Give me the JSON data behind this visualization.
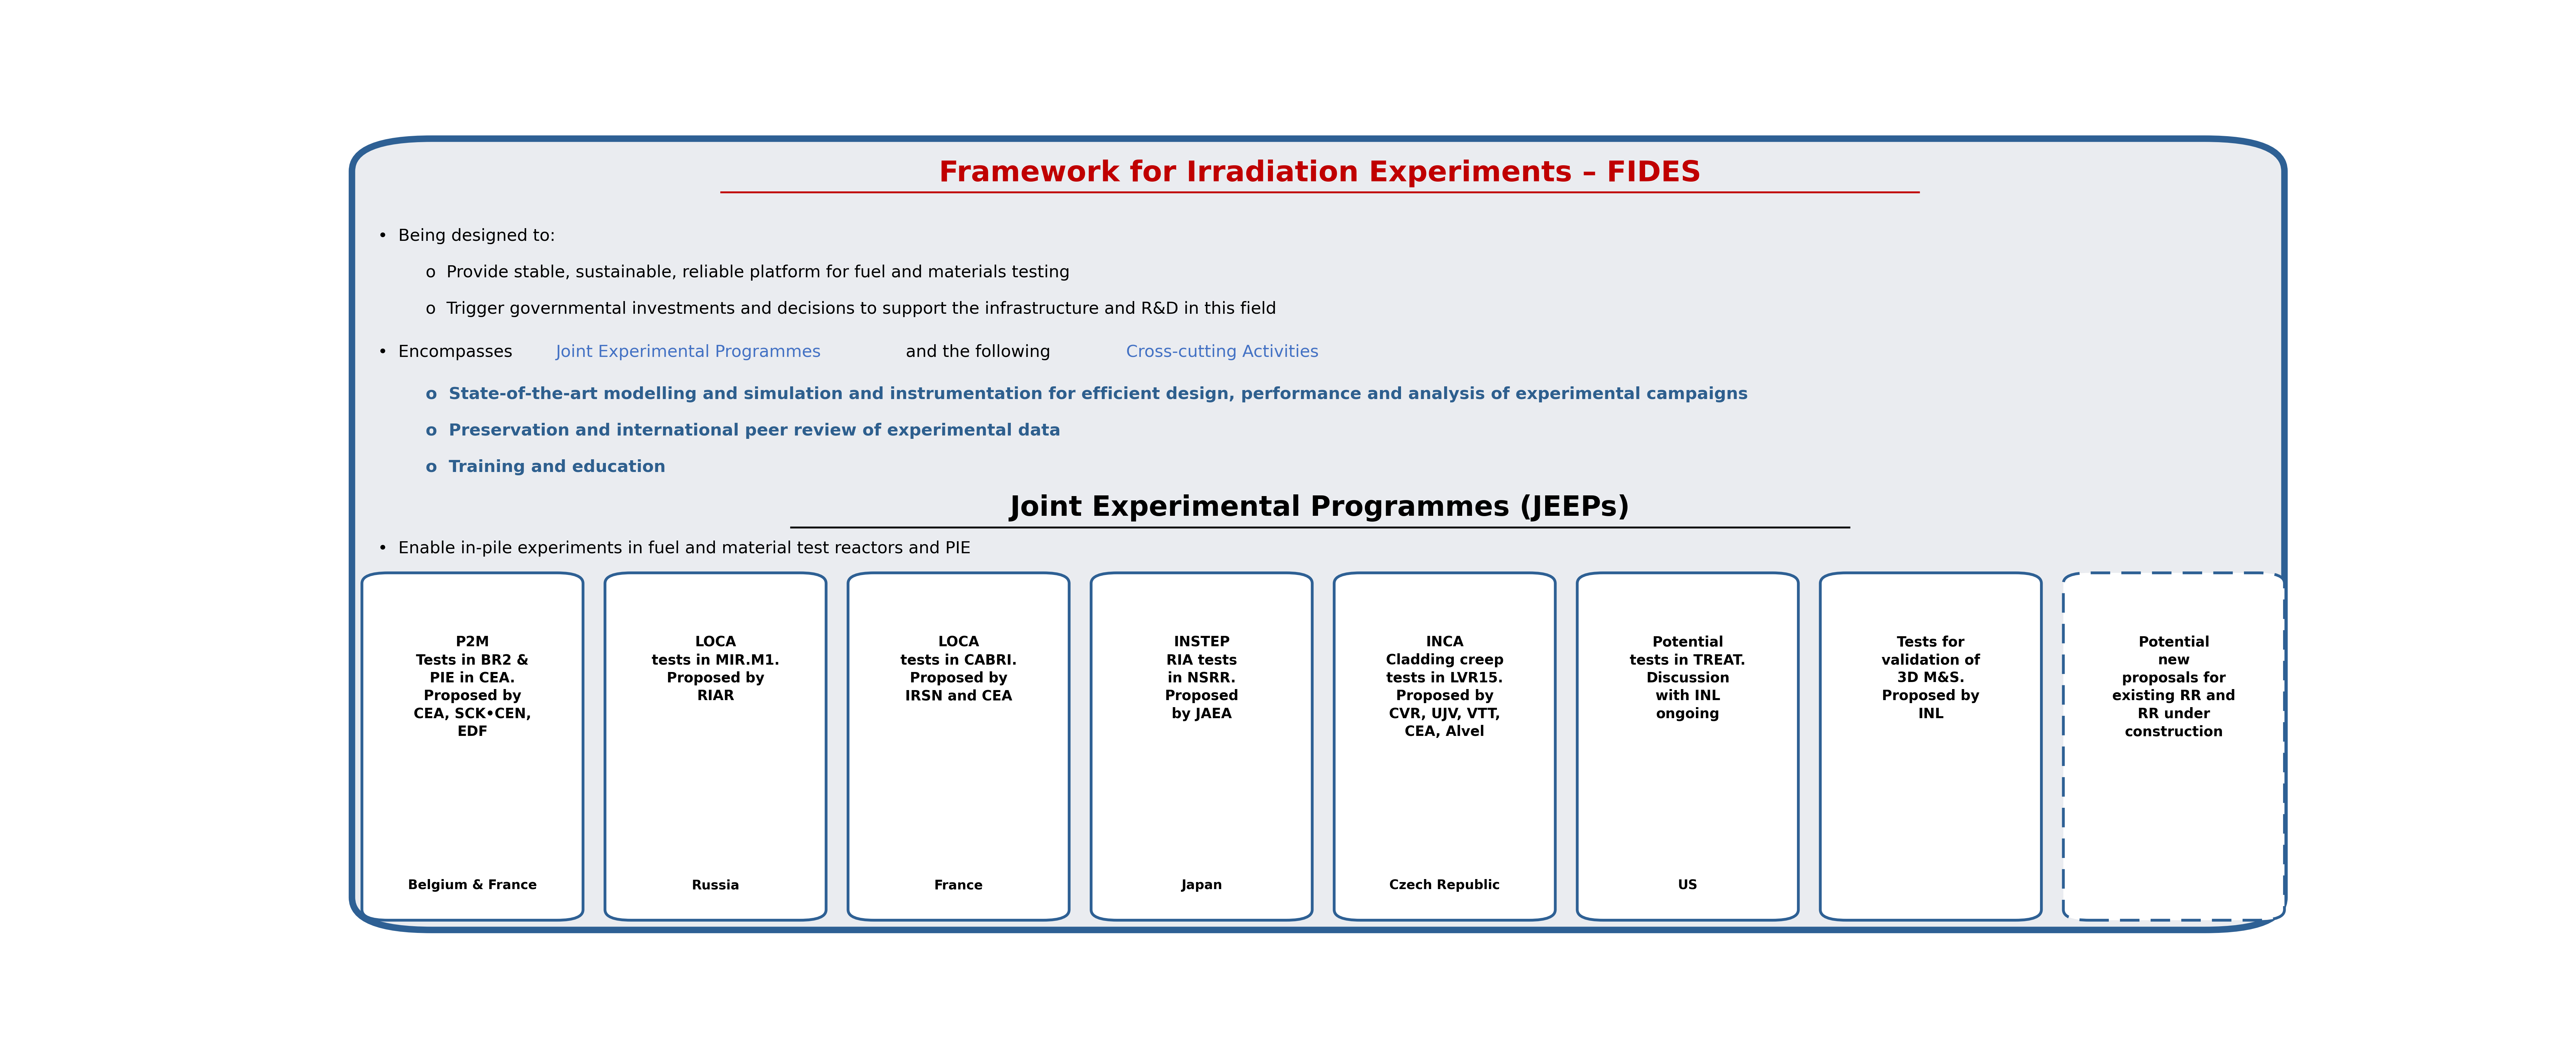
{
  "title": "Framework for Irradiation Experiments – FIDES",
  "title_color": "#C00000",
  "bg_box_color": "#EAECF0",
  "border_color": "#2E6094",
  "jeep_title": "Joint Experimental Programmes (JEEPs)",
  "enable_text": "•  Enable in-pile experiments in fuel and material test reactors and PIE",
  "bullet2_jeep_color": "#4472C4",
  "bullet2_cross_color": "#4472C4",
  "blue_sub_color": "#2E5F8E",
  "cards": [
    {
      "bold_text": "P2M\nTests in BR2 &\nPIE in CEA.\nProposed by\nCEA, SCK•CEN,\nEDF",
      "country": "Belgium & France",
      "border": "#2E6094",
      "dashed": false
    },
    {
      "bold_text": "LOCA\ntests in MIR.M1.\nProposed by\nRIAR",
      "country": "Russia",
      "border": "#2E6094",
      "dashed": false
    },
    {
      "bold_text": "LOCA\ntests in CABRI.\nProposed by\nIRSN and CEA",
      "country": "France",
      "border": "#2E6094",
      "dashed": false
    },
    {
      "bold_text": "INSTEP\nRIA tests\nin NSRR.\nProposed\nby JAEA",
      "country": "Japan",
      "border": "#2E6094",
      "dashed": false
    },
    {
      "bold_text": "INCA\nCladding creep\ntests in LVR15.\nProposed by\nCVR, UJV, VTT,\nCEA, Alvel",
      "country": "Czech Republic",
      "border": "#2E6094",
      "dashed": false
    },
    {
      "bold_text": "Potential\ntests in TREAT.\nDiscussion\nwith INL\nongoing",
      "country": "US",
      "border": "#2E6094",
      "dashed": false
    },
    {
      "bold_text": "Tests for\nvalidation of\n3D M&S.\nProposed by\nINL",
      "country": "",
      "border": "#2E6094",
      "dashed": false
    },
    {
      "bold_text": "Potential\nnew\nproposals for\nexisting RR and\nRR under\nconstruction",
      "country": "",
      "border": "#2E6094",
      "dashed": true
    }
  ],
  "figure_bg": "#FFFFFF"
}
